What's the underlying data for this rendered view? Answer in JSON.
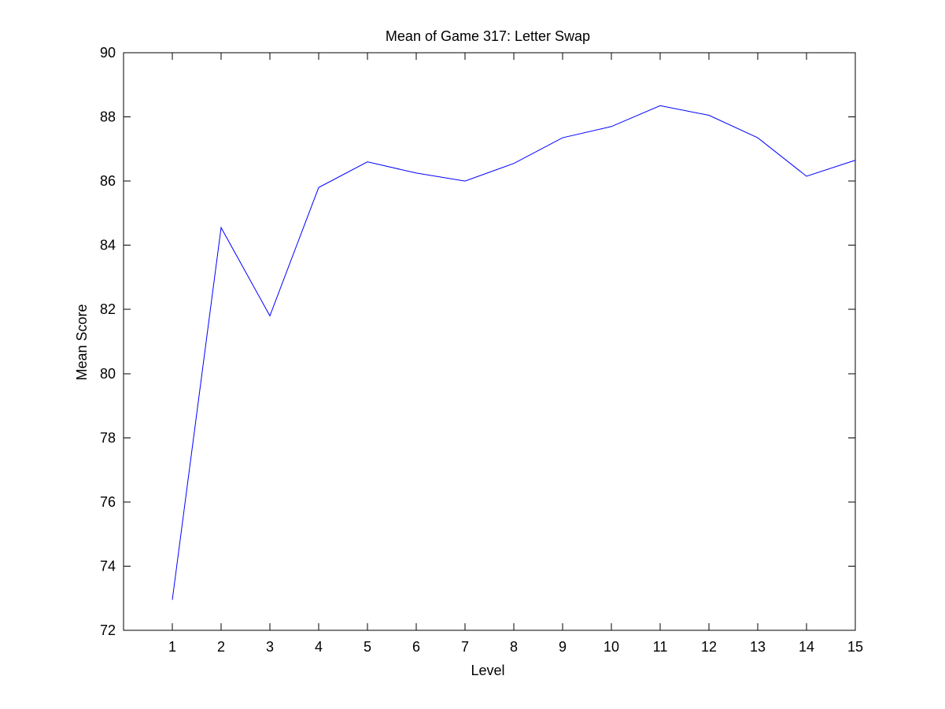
{
  "chart_data": {
    "type": "line",
    "title": "Mean of Game 317: Letter Swap",
    "xlabel": "Level",
    "ylabel": "Mean Score",
    "xlim": [
      0,
      15
    ],
    "ylim": [
      72,
      90
    ],
    "x_ticks": [
      "1",
      "2",
      "3",
      "4",
      "5",
      "6",
      "7",
      "8",
      "9",
      "10",
      "11",
      "12",
      "13",
      "14",
      "15"
    ],
    "y_ticks": [
      "72",
      "74",
      "76",
      "78",
      "80",
      "82",
      "84",
      "86",
      "88",
      "90"
    ],
    "grid": false,
    "series": [
      {
        "color": "#0000ff",
        "x": [
          1,
          2,
          3,
          4,
          5,
          6,
          7,
          8,
          9,
          10,
          11,
          12,
          13,
          14,
          15
        ],
        "y": [
          72.95,
          84.55,
          81.8,
          85.8,
          86.6,
          86.25,
          86.0,
          86.55,
          87.35,
          87.7,
          88.35,
          88.05,
          87.35,
          86.15,
          86.65
        ]
      }
    ]
  }
}
